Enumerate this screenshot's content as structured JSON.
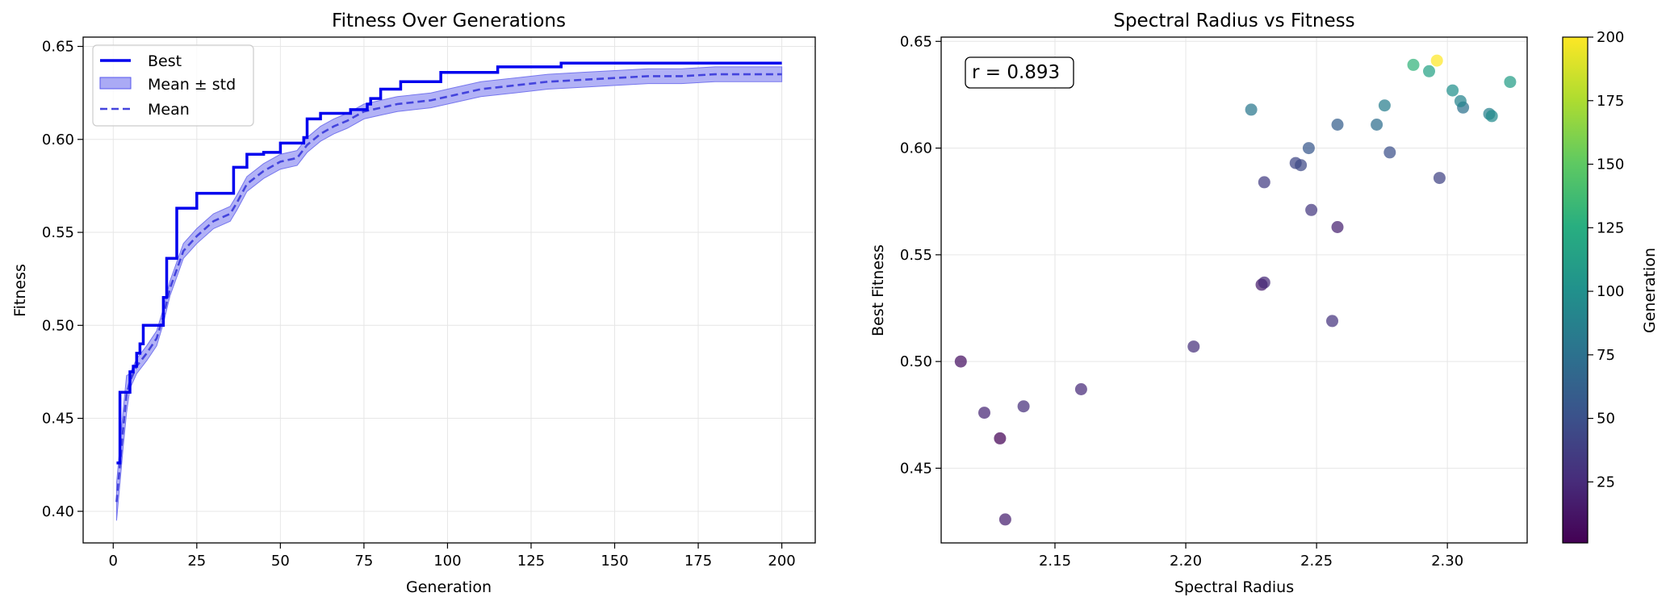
{
  "chart_data": [
    {
      "type": "line",
      "title": "Fitness Over Generations",
      "xlabel": "Generation",
      "ylabel": "Fitness",
      "xlim": [
        -9,
        210
      ],
      "ylim": [
        0.383,
        0.655
      ],
      "xticks": [
        0,
        25,
        50,
        75,
        100,
        125,
        150,
        175,
        200
      ],
      "yticks": [
        0.4,
        0.45,
        0.5,
        0.55,
        0.6,
        0.65
      ],
      "xtick_labels": [
        "0",
        "25",
        "50",
        "75",
        "100",
        "125",
        "150",
        "175",
        "200"
      ],
      "ytick_labels": [
        "0.40",
        "0.45",
        "0.50",
        "0.55",
        "0.60",
        "0.65"
      ],
      "grid": true,
      "legend": {
        "position": "top-left",
        "entries": [
          "Best",
          "Mean ± std",
          "Mean"
        ]
      },
      "colors": {
        "best": "#0000ee",
        "mean": "#4444dd",
        "band": "#aaaaf5"
      },
      "series": [
        {
          "name": "Best",
          "style": "solid",
          "points": [
            [
              1,
              0.426
            ],
            [
              2,
              0.464
            ],
            [
              4,
              0.464
            ],
            [
              5,
              0.475
            ],
            [
              6,
              0.478
            ],
            [
              7,
              0.485
            ],
            [
              8,
              0.49
            ],
            [
              9,
              0.5
            ],
            [
              14,
              0.5
            ],
            [
              15,
              0.515
            ],
            [
              16,
              0.536
            ],
            [
              18,
              0.536
            ],
            [
              19,
              0.563
            ],
            [
              24,
              0.563
            ],
            [
              25,
              0.571
            ],
            [
              35,
              0.571
            ],
            [
              36,
              0.585
            ],
            [
              39,
              0.585
            ],
            [
              40,
              0.592
            ],
            [
              44,
              0.592
            ],
            [
              45,
              0.593
            ],
            [
              49,
              0.593
            ],
            [
              50,
              0.598
            ],
            [
              56,
              0.598
            ],
            [
              57,
              0.601
            ],
            [
              58,
              0.611
            ],
            [
              61,
              0.611
            ],
            [
              62,
              0.614
            ],
            [
              70,
              0.614
            ],
            [
              71,
              0.616
            ],
            [
              75,
              0.616
            ],
            [
              76,
              0.619
            ],
            [
              77,
              0.622
            ],
            [
              79,
              0.622
            ],
            [
              80,
              0.627
            ],
            [
              85,
              0.627
            ],
            [
              86,
              0.631
            ],
            [
              97,
              0.631
            ],
            [
              98,
              0.636
            ],
            [
              114,
              0.636
            ],
            [
              115,
              0.639
            ],
            [
              133,
              0.639
            ],
            [
              134,
              0.641
            ],
            [
              200,
              0.641
            ]
          ]
        },
        {
          "name": "Mean",
          "style": "dashed",
          "points": [
            [
              1,
              0.405
            ],
            [
              2,
              0.425
            ],
            [
              3,
              0.445
            ],
            [
              4,
              0.463
            ],
            [
              5,
              0.47
            ],
            [
              7,
              0.478
            ],
            [
              10,
              0.485
            ],
            [
              13,
              0.493
            ],
            [
              15,
              0.505
            ],
            [
              17,
              0.52
            ],
            [
              19,
              0.53
            ],
            [
              21,
              0.54
            ],
            [
              25,
              0.548
            ],
            [
              30,
              0.556
            ],
            [
              35,
              0.56
            ],
            [
              37,
              0.566
            ],
            [
              40,
              0.576
            ],
            [
              45,
              0.583
            ],
            [
              50,
              0.588
            ],
            [
              55,
              0.59
            ],
            [
              58,
              0.597
            ],
            [
              62,
              0.603
            ],
            [
              66,
              0.607
            ],
            [
              70,
              0.61
            ],
            [
              75,
              0.615
            ],
            [
              80,
              0.617
            ],
            [
              85,
              0.619
            ],
            [
              90,
              0.62
            ],
            [
              95,
              0.621
            ],
            [
              100,
              0.623
            ],
            [
              105,
              0.625
            ],
            [
              110,
              0.627
            ],
            [
              120,
              0.629
            ],
            [
              130,
              0.631
            ],
            [
              140,
              0.632
            ],
            [
              150,
              0.633
            ],
            [
              160,
              0.634
            ],
            [
              170,
              0.634
            ],
            [
              180,
              0.635
            ],
            [
              200,
              0.635
            ]
          ]
        }
      ],
      "band": {
        "name": "Mean ± std",
        "std": 0.004
      }
    },
    {
      "type": "scatter",
      "title": "Spectral Radius vs Fitness",
      "xlabel": "Spectral Radius",
      "ylabel": "Best Fitness",
      "xlim": [
        2.1065,
        2.3305
      ],
      "ylim": [
        0.415,
        0.652
      ],
      "xticks": [
        2.15,
        2.2,
        2.25,
        2.3
      ],
      "yticks": [
        0.45,
        0.5,
        0.55,
        0.6,
        0.65
      ],
      "xtick_labels": [
        "2.15",
        "2.20",
        "2.25",
        "2.30"
      ],
      "ytick_labels": [
        "0.45",
        "0.50",
        "0.55",
        "0.60",
        "0.65"
      ],
      "grid": true,
      "annotation": "r = 0.893",
      "colorbar": {
        "label": "Generation",
        "min": 1,
        "max": 200,
        "ticks": [
          25,
          50,
          75,
          100,
          125,
          150,
          175,
          200
        ],
        "tick_labels": [
          "25",
          "50",
          "75",
          "100",
          "125",
          "150",
          "175",
          "200"
        ],
        "colormap": "viridis"
      },
      "points": [
        {
          "x": 2.114,
          "y": 0.5,
          "gen": 9
        },
        {
          "x": 2.123,
          "y": 0.476,
          "gen": 22
        },
        {
          "x": 2.129,
          "y": 0.464,
          "gen": 2
        },
        {
          "x": 2.131,
          "y": 0.426,
          "gen": 18
        },
        {
          "x": 2.138,
          "y": 0.479,
          "gen": 27
        },
        {
          "x": 2.16,
          "y": 0.487,
          "gen": 24
        },
        {
          "x": 2.203,
          "y": 0.507,
          "gen": 28
        },
        {
          "x": 2.229,
          "y": 0.536,
          "gen": 16
        },
        {
          "x": 2.23,
          "y": 0.537,
          "gen": 24
        },
        {
          "x": 2.23,
          "y": 0.584,
          "gen": 36
        },
        {
          "x": 2.242,
          "y": 0.593,
          "gen": 42
        },
        {
          "x": 2.244,
          "y": 0.592,
          "gen": 45
        },
        {
          "x": 2.248,
          "y": 0.571,
          "gen": 33
        },
        {
          "x": 2.247,
          "y": 0.6,
          "gen": 55
        },
        {
          "x": 2.256,
          "y": 0.519,
          "gen": 30
        },
        {
          "x": 2.258,
          "y": 0.563,
          "gen": 19
        },
        {
          "x": 2.258,
          "y": 0.611,
          "gen": 60
        },
        {
          "x": 2.225,
          "y": 0.618,
          "gen": 80
        },
        {
          "x": 2.273,
          "y": 0.611,
          "gen": 72
        },
        {
          "x": 2.276,
          "y": 0.62,
          "gen": 85
        },
        {
          "x": 2.278,
          "y": 0.598,
          "gen": 50
        },
        {
          "x": 2.287,
          "y": 0.639,
          "gen": 130
        },
        {
          "x": 2.293,
          "y": 0.636,
          "gen": 115
        },
        {
          "x": 2.296,
          "y": 0.641,
          "gen": 200
        },
        {
          "x": 2.297,
          "y": 0.586,
          "gen": 40
        },
        {
          "x": 2.302,
          "y": 0.627,
          "gen": 100
        },
        {
          "x": 2.305,
          "y": 0.622,
          "gen": 90
        },
        {
          "x": 2.306,
          "y": 0.619,
          "gen": 75
        },
        {
          "x": 2.316,
          "y": 0.616,
          "gen": 88
        },
        {
          "x": 2.317,
          "y": 0.615,
          "gen": 95
        },
        {
          "x": 2.324,
          "y": 0.631,
          "gen": 110
        }
      ]
    }
  ]
}
